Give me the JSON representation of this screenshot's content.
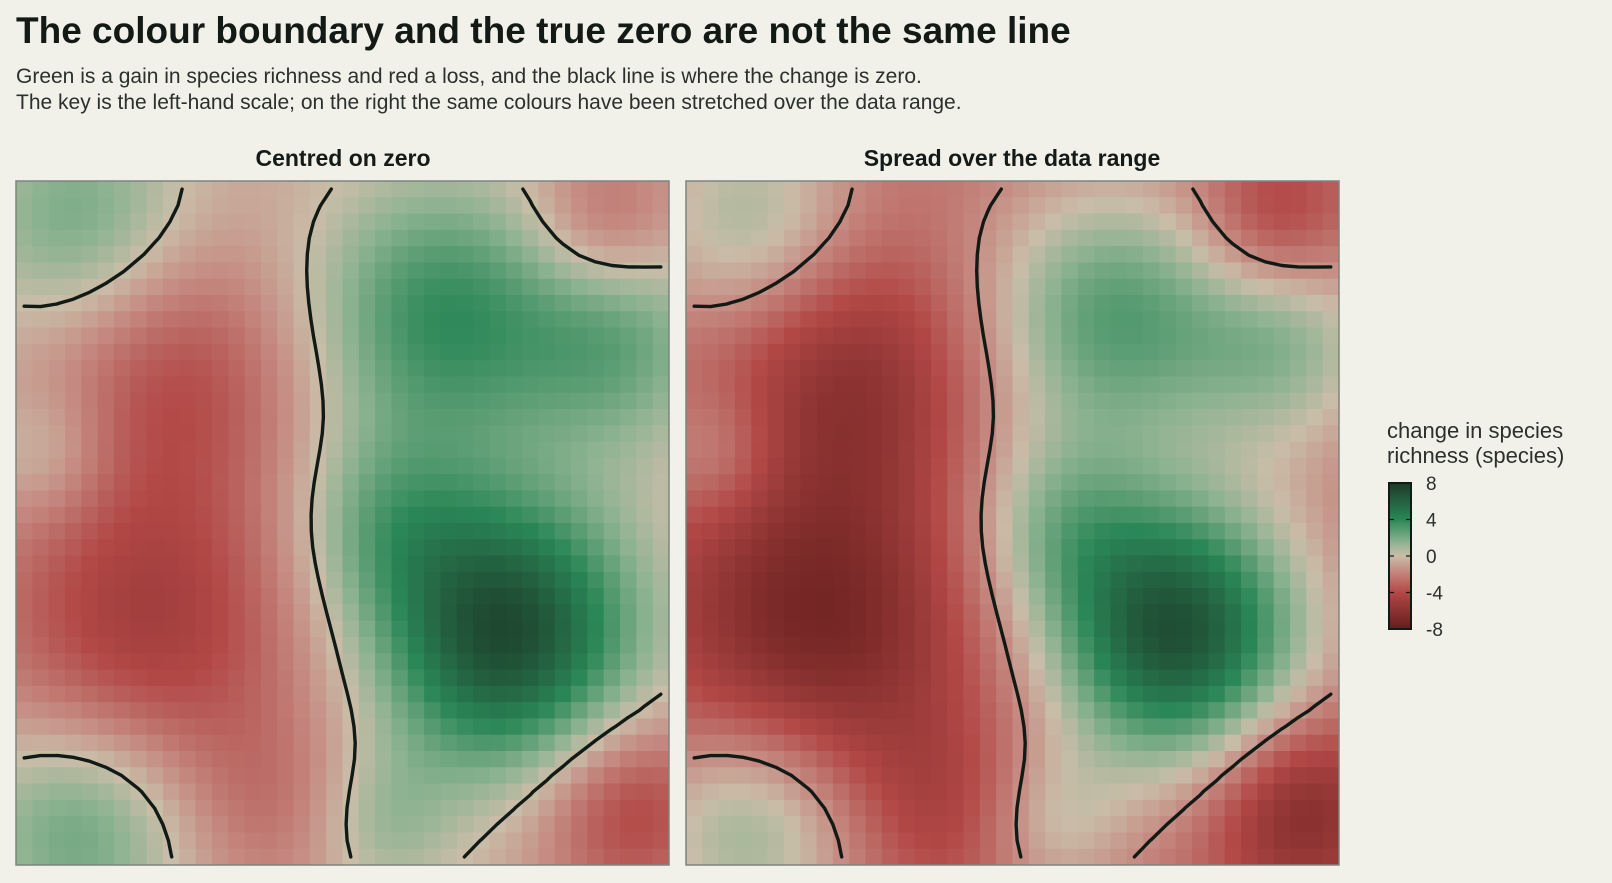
{
  "title": "The colour boundary and the true zero are not the same line",
  "subtitle_lines": [
    "Green is a gain in species richness and red a loss, and the black line is where the change is zero.",
    "The key is the left-hand scale; on the right the same colours have been stretched over the data range."
  ],
  "chart_data": {
    "type": "heatmap",
    "panels": [
      {
        "title": "Centred on zero",
        "scale": "centred",
        "limits": [
          -8,
          8
        ]
      },
      {
        "title": "Spread over the data range",
        "scale": "data-range",
        "limits": [
          -5.5,
          8.2
        ]
      }
    ],
    "grid": {
      "nx": 40,
      "ny": 42
    },
    "field_description": "same field in both panels; colour is change in species richness; black contour marks change = 0",
    "legend": {
      "title_lines": [
        "change in species",
        "richness (species)"
      ],
      "ticks": [
        8,
        4,
        0,
        -4,
        -8
      ],
      "placement": "right",
      "applies_to": "left panel"
    },
    "colors": {
      "gain_dark": "#1c3a28",
      "gain": "#2a8757",
      "gain_light": "#8db391",
      "neutral": "#c9bda8",
      "loss_light": "#c68e85",
      "loss": "#b24846",
      "loss_dark": "#641d1c",
      "contour": "#111a15",
      "panel_border": "#7d847f",
      "background": "#f1f1ea"
    }
  }
}
